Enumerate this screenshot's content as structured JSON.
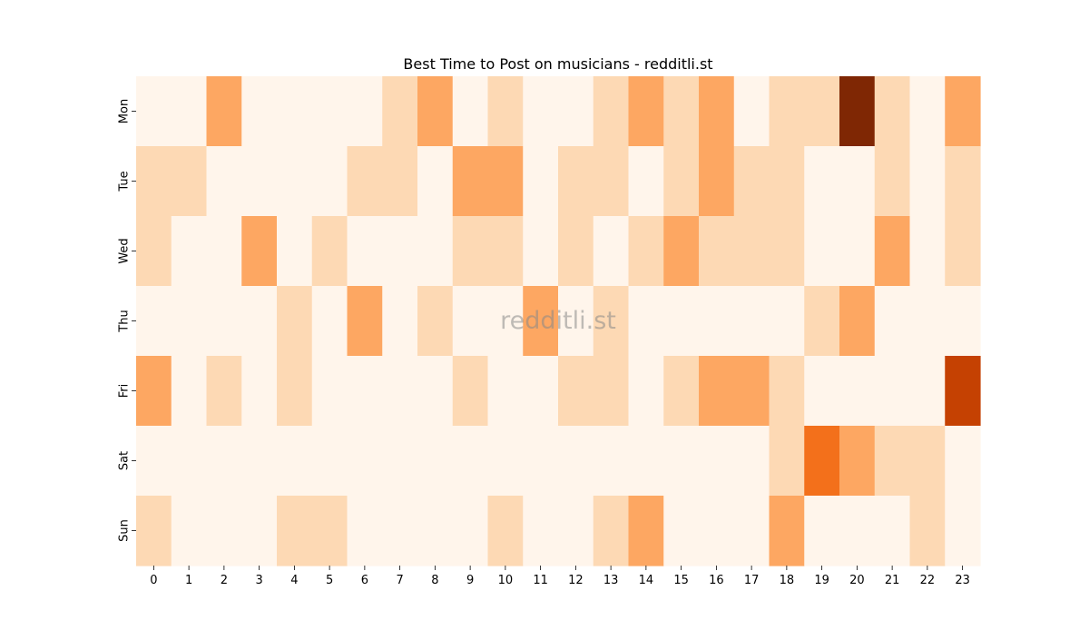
{
  "chart_data": {
    "type": "heatmap",
    "title": "Best Time to Post on musicians - redditli.st",
    "watermark": "redditli.st",
    "xlabel": "",
    "ylabel": "",
    "x": [
      "0",
      "1",
      "2",
      "3",
      "4",
      "5",
      "6",
      "7",
      "8",
      "9",
      "10",
      "11",
      "12",
      "13",
      "14",
      "15",
      "16",
      "17",
      "18",
      "19",
      "20",
      "21",
      "22",
      "23"
    ],
    "y": [
      "Mon",
      "Tue",
      "Wed",
      "Thu",
      "Fri",
      "Sat",
      "Sun"
    ],
    "values": [
      [
        0,
        0,
        2,
        0,
        0,
        0,
        0,
        1,
        2,
        0,
        1,
        0,
        0,
        1,
        2,
        1,
        2,
        0,
        1,
        1,
        5,
        1,
        0,
        2
      ],
      [
        1,
        1,
        0,
        0,
        0,
        0,
        1,
        1,
        0,
        2,
        2,
        0,
        1,
        1,
        0,
        1,
        2,
        1,
        1,
        0,
        0,
        1,
        0,
        1
      ],
      [
        1,
        0,
        0,
        2,
        0,
        1,
        0,
        0,
        0,
        1,
        1,
        0,
        1,
        0,
        1,
        2,
        1,
        1,
        1,
        0,
        0,
        2,
        0,
        1
      ],
      [
        0,
        0,
        0,
        0,
        1,
        0,
        2,
        0,
        1,
        0,
        0,
        2,
        0,
        1,
        0,
        0,
        0,
        0,
        0,
        1,
        2,
        0,
        0,
        0
      ],
      [
        2,
        0,
        1,
        0,
        1,
        0,
        0,
        0,
        0,
        1,
        0,
        0,
        1,
        1,
        0,
        1,
        2,
        2,
        1,
        0,
        0,
        0,
        0,
        4
      ],
      [
        0,
        0,
        0,
        0,
        0,
        0,
        0,
        0,
        0,
        0,
        0,
        0,
        0,
        0,
        0,
        0,
        0,
        0,
        1,
        3,
        2,
        1,
        1,
        0
      ],
      [
        1,
        0,
        0,
        0,
        1,
        1,
        0,
        0,
        0,
        0,
        1,
        0,
        0,
        1,
        2,
        0,
        0,
        0,
        2,
        0,
        0,
        0,
        1,
        0
      ]
    ],
    "colorbar": false,
    "grid": false,
    "colormap_colors": [
      "#fff5eb",
      "#fdd9b4",
      "#fda762",
      "#f3701b",
      "#c54102",
      "#7f2704"
    ]
  }
}
